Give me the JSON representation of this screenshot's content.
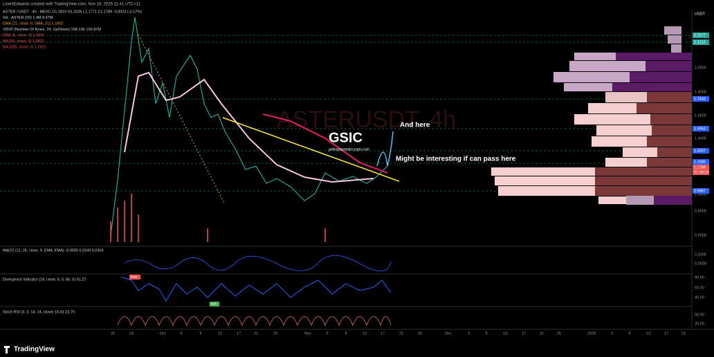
{
  "header": {
    "credit": "LiseHEdwards created with TradingView.com, Nov 18, 2025 11:41 UTC+11"
  },
  "legend": [
    "ASTER / USDT · 4h · MEXC  O1.1810 H1.2035 L1.1771 C1.1789 -0.0023 (-0.17%)",
    "Vol · ASTER (20)  1.4M  8.47M",
    "EMA (21, close, 0, SMA, 21)  1.1802",
    "VRVP (Number Of Rows, 24, Up/Down)  158.13K  159.87M",
    "EMA (9, close, 0)  1.0092",
    "MA (50, close, 0)  1.0821",
    "MA (200, close, 0)  1.2921"
  ],
  "watermark": "ASTERUSDT, 4h",
  "logo": {
    "name": "GSIC",
    "site": "gettingstartedincrypto.com"
  },
  "annotations": [
    "And here",
    "Might be interesting if can pass here"
  ],
  "price_axis": {
    "unit": "USDT",
    "labels": [
      "2.0000",
      "1.8000",
      "1.6000",
      "1.4000",
      "1.2000",
      "1.0000",
      "0.8000",
      "0.6000"
    ],
    "badges": [
      "2.2577",
      "2.1212",
      "1.7443",
      "1.4963",
      "1.3007",
      "1.1985",
      "1.1789",
      "01:18:15",
      "0.9887"
    ]
  },
  "panes": {
    "macd": "MACD (12, 26, close, 9, EMA, EMA)  -0.0055  0.0249  0.0304",
    "divergence": "Divergence Indicator (14, close, 5, 5, 60, 5)  51.27",
    "stoch": "Stoch RSI (3, 3, 14, 14, close)  10.43  23.70",
    "macd_axis": [
      "0.2000",
      "0.0000"
    ],
    "div_axis": [
      "80.00",
      "60.00",
      "40.00"
    ],
    "stoch_axis": [
      "50.00",
      "20.00"
    ],
    "bull": "Bull",
    "bear": "Bear"
  },
  "date_axis": [
    "20",
    "24",
    "Oct",
    "6",
    "9",
    "13",
    "17",
    "21",
    "25",
    "Nov",
    "5",
    "9",
    "13",
    "17",
    "21",
    "25",
    "Dec",
    "5",
    "9",
    "13",
    "17",
    "21",
    "25",
    "2026",
    "5",
    "9",
    "13",
    "17",
    "21"
  ],
  "footer": "TradingView"
}
